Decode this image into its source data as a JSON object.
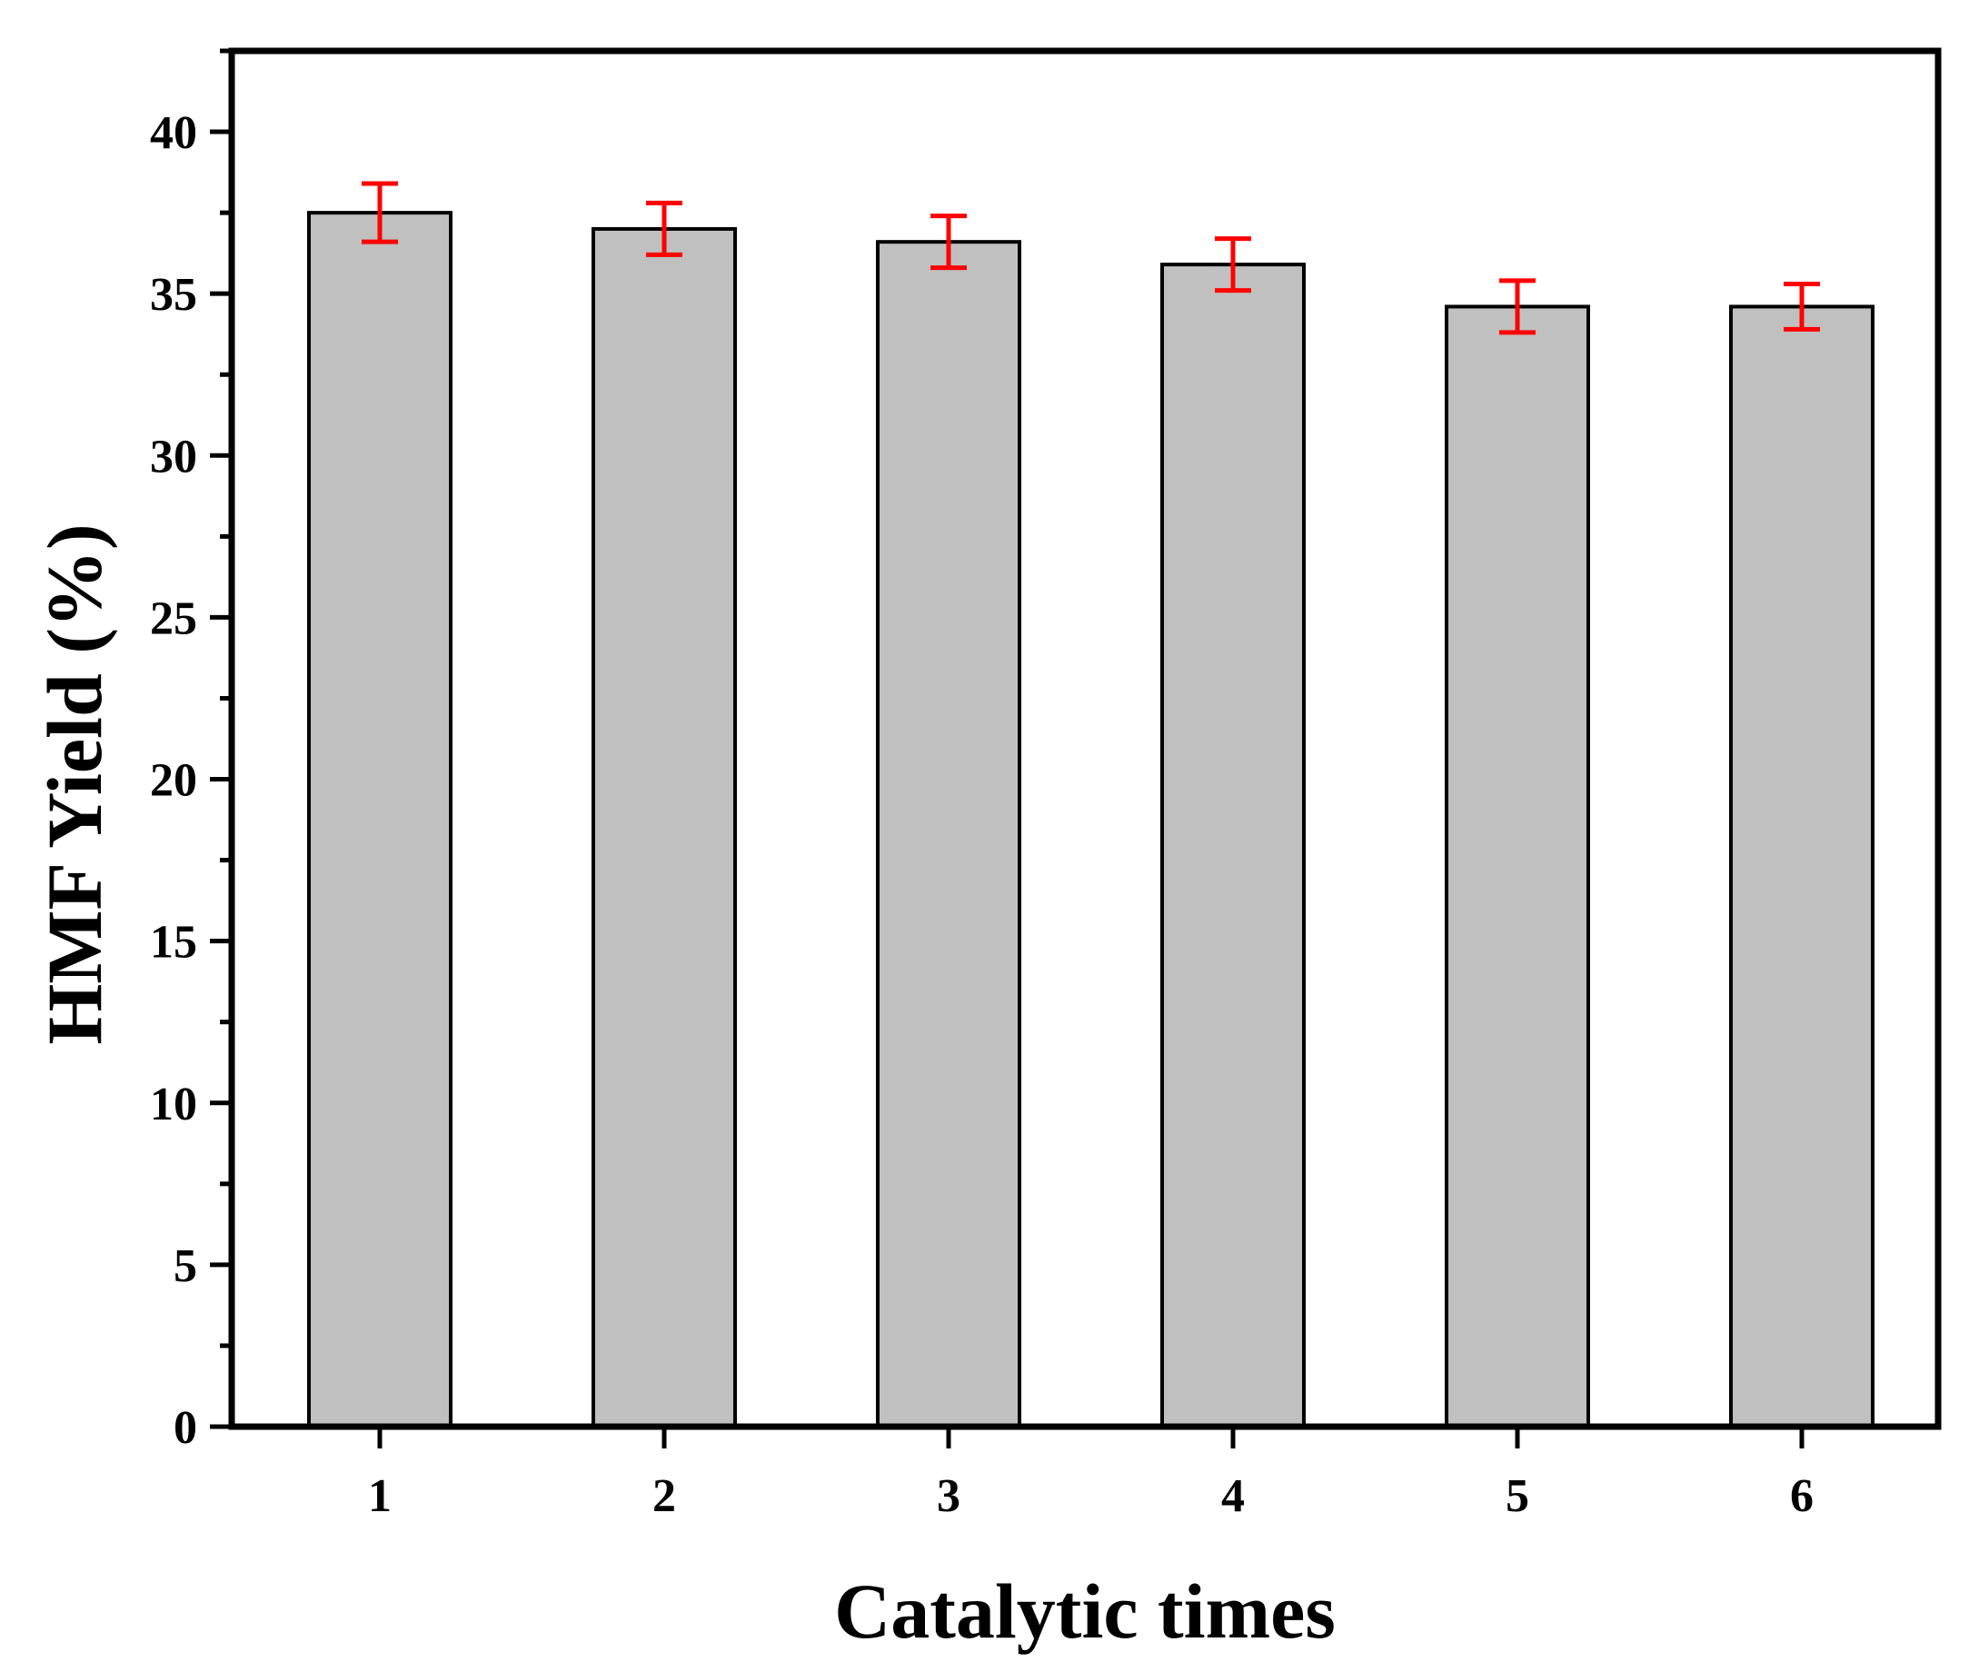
{
  "chart_data": {
    "type": "bar",
    "categories": [
      "1",
      "2",
      "3",
      "4",
      "5",
      "6"
    ],
    "values": [
      37.5,
      37.0,
      36.6,
      35.9,
      34.6,
      34.6
    ],
    "error": [
      0.9,
      0.8,
      0.8,
      0.8,
      0.8,
      0.7
    ],
    "xlabel": "Catalytic times",
    "ylabel": "HMF Yield (%)",
    "ylim": [
      0,
      42.5
    ],
    "yticks": [
      0,
      5,
      10,
      15,
      20,
      25,
      30,
      35,
      40
    ],
    "grid": false,
    "legend": "none",
    "colors": {
      "bar_fill": "#c0c0c0",
      "bar_stroke": "#000000",
      "error_bar": "#ff0000",
      "axis": "#000000",
      "background": "#ffffff"
    }
  }
}
